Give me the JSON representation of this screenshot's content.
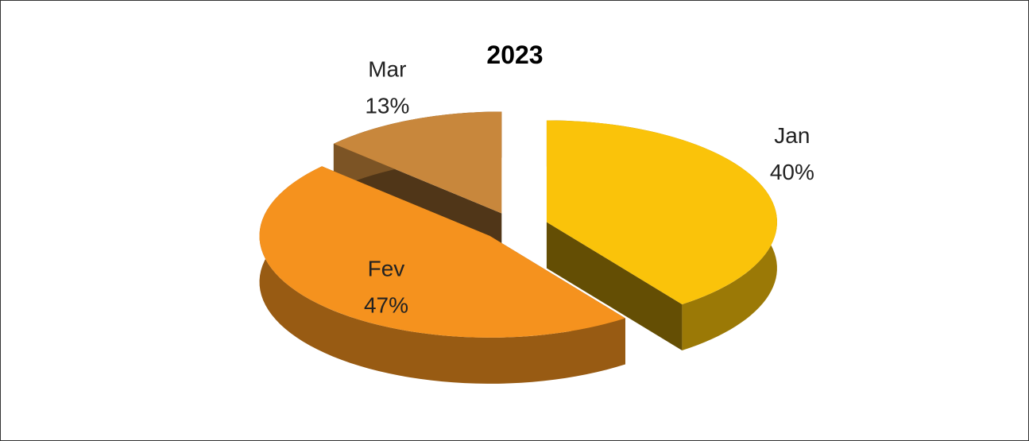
{
  "chart_data": {
    "type": "pie",
    "title": "2023",
    "categories": [
      "Jan",
      "Fev",
      "Mar"
    ],
    "values": [
      40,
      47,
      13
    ],
    "value_labels": [
      "40%",
      "47%",
      "13%"
    ],
    "colors": [
      "#fac30a",
      "#f5921e",
      "#c8873c"
    ]
  }
}
